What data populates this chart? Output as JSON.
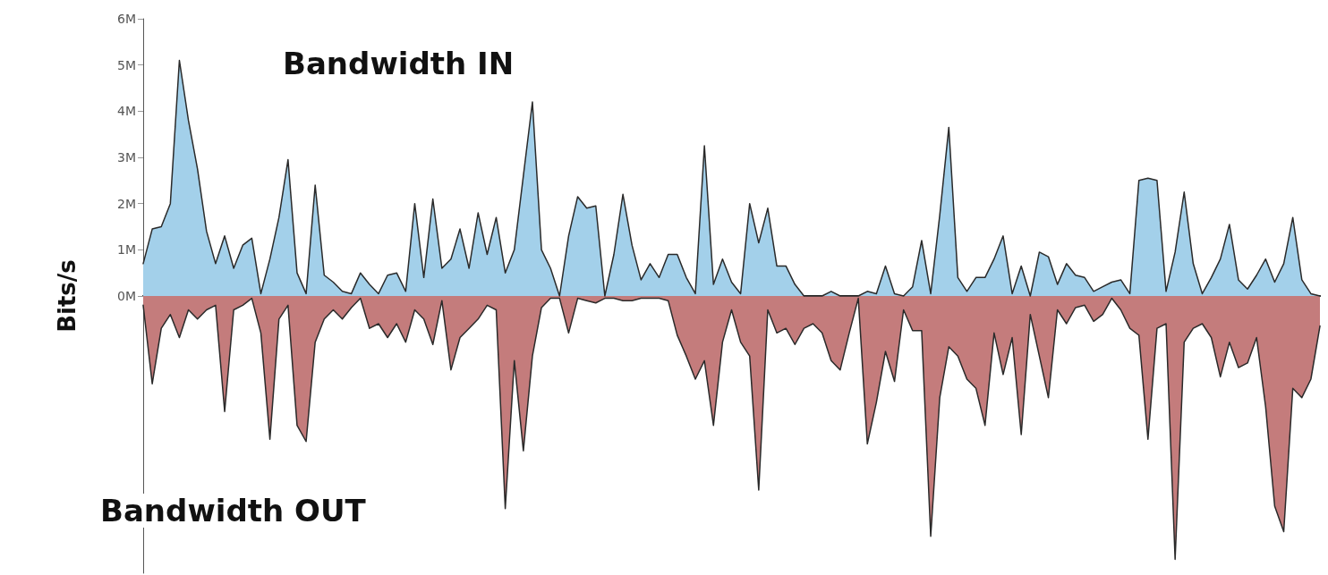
{
  "chart_data": {
    "type": "area",
    "ylabel": "Bits/s",
    "categories": [
      null,
      null,
      null,
      null,
      null,
      null,
      null,
      null,
      null,
      null,
      null,
      null,
      null,
      null,
      null,
      null,
      null,
      null,
      null,
      null,
      null,
      null,
      null,
      null,
      null,
      null,
      null,
      null,
      null,
      null,
      null,
      null,
      null,
      null,
      null,
      null,
      null,
      null,
      null,
      null,
      null,
      null,
      null,
      null,
      null,
      null,
      null,
      null,
      null,
      null,
      null,
      null,
      null,
      null,
      null,
      null,
      null,
      null,
      null,
      null,
      null,
      null,
      null,
      null,
      null,
      null,
      null,
      null,
      null,
      null,
      null,
      null,
      null,
      null,
      null,
      null,
      null,
      null,
      null,
      null,
      null,
      null,
      null,
      null,
      null,
      null,
      null,
      null,
      null,
      null,
      null,
      null,
      null,
      null,
      null,
      null,
      null,
      null,
      null,
      null,
      null,
      null,
      null,
      null,
      null,
      null,
      null,
      null,
      null,
      null,
      null,
      null,
      null,
      null,
      null,
      null,
      null,
      null,
      null,
      null,
      null,
      null,
      null,
      null,
      null,
      null,
      null,
      null,
      null,
      null,
      null
    ],
    "series": [
      {
        "name": "Bandwidth IN",
        "color": "#a3d0ea",
        "values": [
          0.7,
          1.45,
          1.5,
          2.0,
          5.1,
          3.8,
          2.75,
          1.4,
          0.7,
          1.3,
          0.6,
          1.1,
          1.25,
          0.05,
          0.8,
          1.7,
          2.95,
          0.5,
          0.05,
          2.4,
          0.45,
          0.3,
          0.1,
          0.05,
          0.5,
          0.25,
          0.05,
          0.45,
          0.5,
          0.1,
          2.0,
          0.4,
          2.1,
          0.6,
          0.8,
          1.45,
          0.6,
          1.8,
          0.9,
          1.7,
          0.5,
          1.0,
          2.6,
          4.2,
          1.0,
          0.6,
          0.0,
          1.3,
          2.15,
          1.9,
          1.95,
          0.0,
          0.9,
          2.2,
          1.1,
          0.35,
          0.7,
          0.4,
          0.9,
          0.9,
          0.4,
          0.05,
          3.25,
          0.25,
          0.8,
          0.3,
          0.05,
          2.0,
          1.15,
          1.9,
          0.65,
          0.65,
          0.25,
          0.0,
          0.0,
          0.0,
          0.1,
          0.0,
          0.0,
          0.0,
          0.1,
          0.05,
          0.65,
          0.05,
          0.0,
          0.2,
          1.2,
          0.05,
          1.75,
          3.65,
          0.4,
          0.1,
          0.4,
          0.4,
          0.8,
          1.3,
          0.05,
          0.65,
          0.0,
          0.95,
          0.85,
          0.25,
          0.7,
          0.45,
          0.4,
          0.1,
          0.2,
          0.3,
          0.35,
          0.05,
          2.5,
          2.55,
          2.5,
          0.1,
          0.95,
          2.25,
          0.7,
          0.05,
          0.4,
          0.8,
          1.55,
          0.35,
          0.15,
          0.45,
          0.8,
          0.3,
          0.7,
          1.7,
          0.35,
          0.05,
          0.0
        ]
      },
      {
        "name": "Bandwidth OUT",
        "color": "#c47c7c",
        "values": [
          -0.2,
          -1.9,
          -0.7,
          -0.4,
          -0.9,
          -0.3,
          -0.5,
          -0.3,
          -0.2,
          -2.5,
          -0.3,
          -0.2,
          -0.05,
          -0.8,
          -3.1,
          -0.5,
          -0.2,
          -2.8,
          -3.15,
          -1.0,
          -0.5,
          -0.3,
          -0.5,
          -0.25,
          -0.05,
          -0.7,
          -0.6,
          -0.9,
          -0.6,
          -1.0,
          -0.3,
          -0.5,
          -1.05,
          -0.1,
          -1.6,
          -0.9,
          -0.7,
          -0.5,
          -0.2,
          -0.3,
          -4.6,
          -1.4,
          -3.35,
          -1.3,
          -0.25,
          -0.05,
          -0.05,
          -0.8,
          -0.05,
          -0.1,
          -0.15,
          -0.05,
          -0.05,
          -0.1,
          -0.1,
          -0.05,
          -0.05,
          -0.05,
          -0.1,
          -0.85,
          -1.3,
          -1.8,
          -1.4,
          -2.8,
          -1.0,
          -0.3,
          -1.0,
          -1.3,
          -4.2,
          -0.3,
          -0.8,
          -0.7,
          -1.05,
          -0.7,
          -0.6,
          -0.8,
          -1.4,
          -1.6,
          -0.8,
          -0.05,
          -3.2,
          -2.3,
          -1.2,
          -1.85,
          -0.3,
          -0.75,
          -0.75,
          -5.2,
          -2.2,
          -1.1,
          -1.3,
          -1.8,
          -2.0,
          -2.8,
          -0.8,
          -1.7,
          -0.9,
          -3.0,
          -0.4,
          -1.3,
          -2.2,
          -0.3,
          -0.6,
          -0.25,
          -0.2,
          -0.55,
          -0.4,
          -0.05,
          -0.3,
          -0.7,
          -0.85,
          -3.1,
          -0.7,
          -0.6,
          -5.7,
          -1.0,
          -0.7,
          -0.6,
          -0.9,
          -1.75,
          -1.0,
          -1.55,
          -1.45,
          -0.9,
          -2.4,
          -4.55,
          -5.1,
          -2.0,
          -2.2,
          -1.8,
          -0.65
        ]
      }
    ],
    "ylim": [
      -6,
      6
    ],
    "yticks": [
      {
        "value": 0,
        "label": "0M"
      },
      {
        "value": 1,
        "label": "1M"
      },
      {
        "value": 2,
        "label": "2M"
      },
      {
        "value": 3,
        "label": "3M"
      },
      {
        "value": 4,
        "label": "4M"
      },
      {
        "value": 5,
        "label": "5M"
      },
      {
        "value": 6,
        "label": "6M"
      }
    ],
    "tick_labels": "y"
  }
}
